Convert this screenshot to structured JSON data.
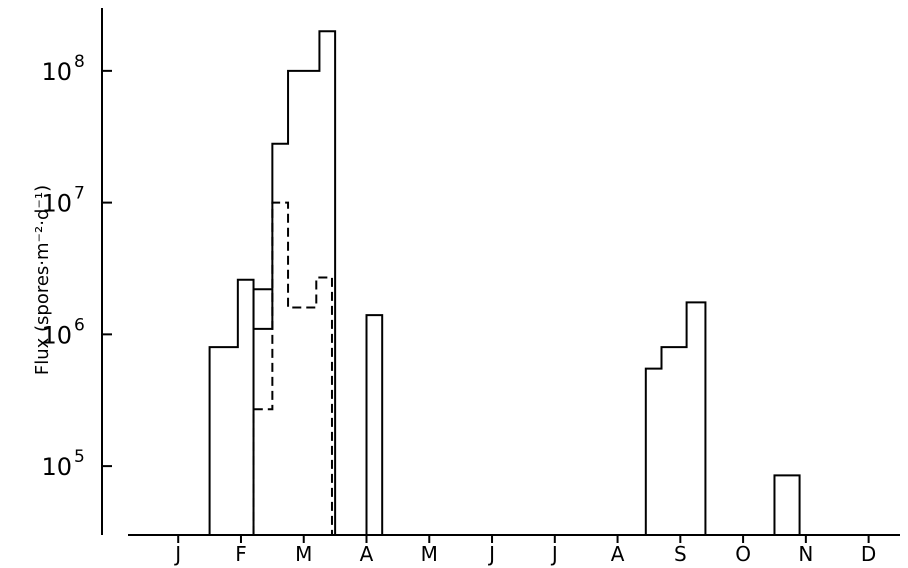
{
  "chart_data": {
    "type": "bar",
    "title": "",
    "xlabel": "",
    "ylabel": "Flux (spores·m⁻²·d⁻¹)",
    "yscale": "log",
    "ylim": [
      30000,
      300000000
    ],
    "x_range": [
      -0.3,
      12.0
    ],
    "x_ticks": [
      {
        "label": "J",
        "pos": 0.5
      },
      {
        "label": "F",
        "pos": 1.5
      },
      {
        "label": "M",
        "pos": 2.5
      },
      {
        "label": "A",
        "pos": 3.5
      },
      {
        "label": "M",
        "pos": 4.5
      },
      {
        "label": "J",
        "pos": 5.5
      },
      {
        "label": "J",
        "pos": 6.5
      },
      {
        "label": "A",
        "pos": 7.5
      },
      {
        "label": "S",
        "pos": 8.5
      },
      {
        "label": "O",
        "pos": 9.5
      },
      {
        "label": "N",
        "pos": 10.5
      },
      {
        "label": "D",
        "pos": 11.5
      }
    ],
    "y_ticks": [
      {
        "base": "10",
        "exp": "5",
        "value": 100000
      },
      {
        "base": "10",
        "exp": "6",
        "value": 1000000
      },
      {
        "base": "10",
        "exp": "7",
        "value": 10000000
      },
      {
        "base": "10",
        "exp": "8",
        "value": 100000000
      }
    ],
    "grid": false,
    "legend": "none",
    "series": [
      {
        "style": "solid",
        "bins": [
          {
            "x0": 1.0,
            "x1": 1.45,
            "value": 800000
          },
          {
            "x0": 1.45,
            "x1": 1.7,
            "value": 2600000
          },
          {
            "x0": 1.7,
            "x1": 2.0,
            "value": 1100000
          },
          {
            "x0": 2.0,
            "x1": 2.25,
            "value": 28000000
          },
          {
            "x0": 2.25,
            "x1": 2.75,
            "value": 100000000
          },
          {
            "x0": 2.75,
            "x1": 3.0,
            "value": 200000000
          },
          {
            "x0": 3.5,
            "x1": 3.75,
            "value": 1400000
          },
          {
            "x0": 7.95,
            "x1": 8.2,
            "value": 550000
          },
          {
            "x0": 8.2,
            "x1": 8.6,
            "value": 800000
          },
          {
            "x0": 8.6,
            "x1": 8.9,
            "value": 1750000
          },
          {
            "x0": 10.0,
            "x1": 10.4,
            "value": 85000
          }
        ],
        "extra_segments": [
          {
            "x0": 1.7,
            "x1": 2.0,
            "value": 2200000
          }
        ]
      },
      {
        "style": "dashed",
        "bins": [
          {
            "x0": 1.7,
            "x1": 2.0,
            "value": 270000
          },
          {
            "x0": 2.0,
            "x1": 2.25,
            "value": 10000000
          },
          {
            "x0": 2.25,
            "x1": 2.7,
            "value": 1600000
          },
          {
            "x0": 2.7,
            "x1": 2.95,
            "value": 2700000
          }
        ]
      }
    ]
  }
}
